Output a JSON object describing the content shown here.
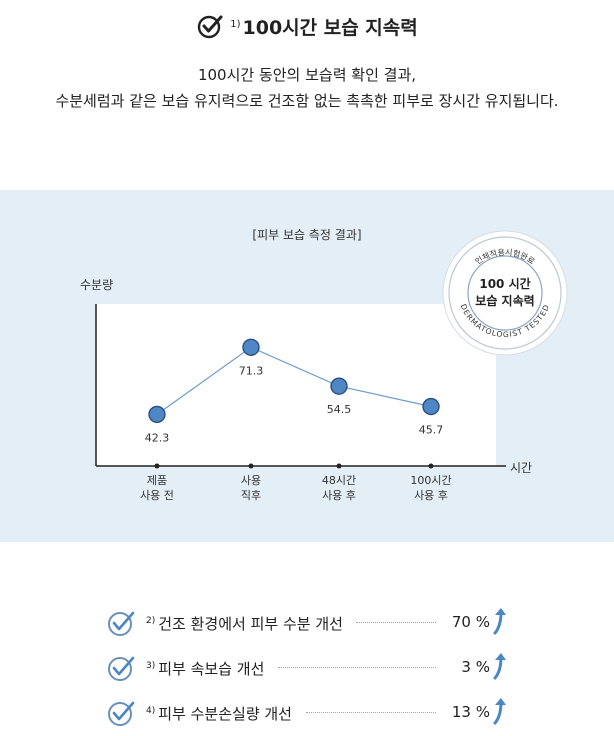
{
  "header": {
    "title_ref": "1)",
    "title": "100시간 보습 지속력",
    "desc_line1": "100시간 동안의 보습력 확인 결과,",
    "desc_line2": "수분세럼과 같은 보습 유지력으로 건조함 없는 촉촉한 피부로 장시간 유지됩니다."
  },
  "badge": {
    "top_text": "인체적용시험완료",
    "main_line1": "100 시간",
    "main_line2": "보습 지속력",
    "bottom_text": "DERMATOLOGIST TESTED"
  },
  "chart_data": {
    "type": "line",
    "title": "[피부 보습 측정 결과]",
    "xlabel": "시간",
    "ylabel": "수분량",
    "categories": [
      "제품\n사용 전",
      "사용\n직후",
      "48시간\n사용 후",
      "100시간\n사용 후"
    ],
    "category_lines": [
      [
        "제품",
        "사용 전"
      ],
      [
        "사용",
        "직후"
      ],
      [
        "48시간",
        "사용 후"
      ],
      [
        "100시간",
        "사용 후"
      ]
    ],
    "values": [
      42.3,
      71.3,
      54.5,
      45.7
    ],
    "value_labels": [
      "42.3",
      "71.3",
      "54.5",
      "45.7"
    ],
    "ylim": [
      20,
      90
    ],
    "grid": false,
    "colors": {
      "line": "#6f9bcf",
      "point": "#4f86c6",
      "point_stroke": "#2a4f7a",
      "axis": "#222222"
    }
  },
  "results": [
    {
      "ref": "2)",
      "label": "건조 환경에서 피부 수분 개선",
      "value": "70 %"
    },
    {
      "ref": "3)",
      "label": "피부 속보습 개선",
      "value": "3 %"
    },
    {
      "ref": "4)",
      "label": "피부 수분손실량 개선",
      "value": "13 %"
    }
  ],
  "colors": {
    "panel_bg": "#e4eef6",
    "accent": "#4a86c5",
    "check_ring": "#6a8fb8"
  }
}
